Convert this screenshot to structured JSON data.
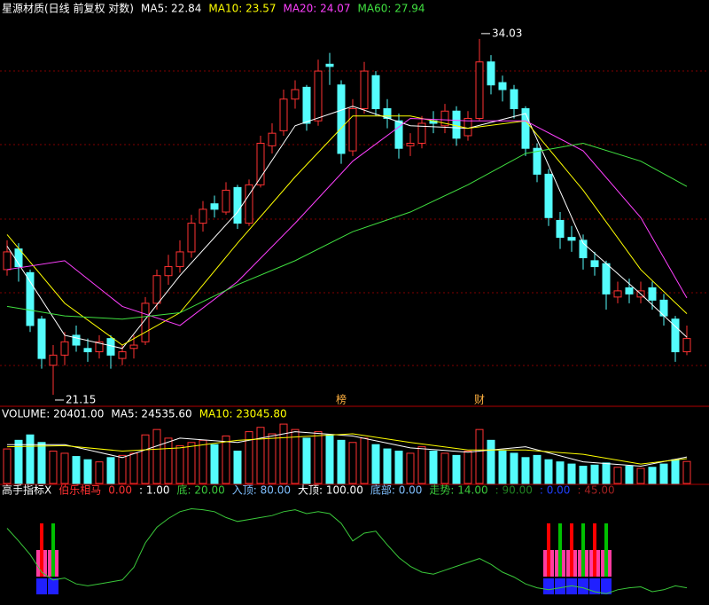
{
  "chart_data": [
    {
      "type": "candlestick",
      "log_scale": true,
      "ylim": [
        20.9,
        34.8
      ],
      "legend": [
        {
          "text": "星源材质(日线 前复权 对数)",
          "color": "#ffffff"
        },
        {
          "text": "MA5: 22.84",
          "color": "#ffffff"
        },
        {
          "text": "MA10: 23.57",
          "color": "#ffff00"
        },
        {
          "text": "MA20: 24.07",
          "color": "#ff40ff"
        },
        {
          "text": "MA60: 27.94",
          "color": "#40e040"
        }
      ],
      "up_color": "#ff3232",
      "down_color": "#54fcfc",
      "open": [
        25.0,
        25.7,
        24.9,
        23.4,
        22.0,
        22.3,
        22.9,
        22.5,
        22.4,
        22.8,
        22.2,
        22.5,
        22.7,
        23.9,
        24.8,
        25.1,
        25.6,
        26.6,
        27.3,
        27.0,
        27.9,
        26.6,
        28.0,
        29.5,
        30.1,
        31.4,
        31.9,
        30.5,
        32.9,
        32.0,
        29.3,
        31.0,
        32.4,
        31.0,
        30.5,
        29.5,
        29.6,
        30.5,
        30.3,
        30.9,
        29.9,
        30.6,
        33.0,
        32.1,
        31.8,
        31.0,
        29.4,
        28.4,
        26.7,
        26.1,
        26.0,
        25.3,
        25.2,
        24.1,
        24.4,
        24.1,
        24.4,
        24.0,
        23.4,
        22.4
      ],
      "high": [
        26.0,
        25.9,
        25.0,
        23.5,
        22.6,
        23.0,
        23.2,
        22.8,
        22.9,
        22.9,
        22.6,
        22.9,
        24.1,
        25.0,
        25.5,
        26.0,
        26.9,
        27.4,
        27.6,
        28.1,
        28.0,
        28.2,
        29.9,
        30.4,
        31.8,
        32.2,
        32.0,
        33.1,
        33.4,
        32.2,
        31.4,
        33.0,
        32.6,
        31.4,
        30.8,
        30.0,
        30.7,
        30.9,
        31.2,
        31.1,
        30.9,
        34.03,
        33.3,
        32.4,
        32.0,
        31.1,
        29.6,
        28.6,
        27.0,
        26.5,
        26.2,
        25.6,
        25.3,
        24.6,
        24.7,
        24.6,
        24.6,
        24.2,
        23.5,
        23.2
      ],
      "low": [
        24.8,
        24.6,
        23.0,
        21.9,
        21.15,
        22.0,
        22.4,
        22.1,
        22.2,
        21.9,
        22.0,
        22.2,
        22.6,
        23.7,
        24.5,
        24.9,
        25.4,
        26.3,
        26.8,
        26.9,
        26.4,
        26.5,
        27.9,
        29.2,
        29.9,
        31.0,
        30.1,
        30.3,
        32.0,
        28.8,
        29.1,
        30.8,
        30.7,
        30.2,
        29.0,
        29.1,
        29.4,
        30.0,
        30.0,
        29.5,
        29.7,
        30.5,
        31.6,
        31.3,
        30.6,
        29.1,
        28.1,
        26.5,
        25.7,
        25.6,
        25.0,
        24.8,
        23.7,
        23.9,
        23.9,
        23.9,
        23.7,
        23.2,
        22.1,
        22.3
      ],
      "close": [
        25.6,
        25.1,
        23.2,
        22.2,
        22.3,
        22.7,
        22.6,
        22.4,
        22.7,
        22.3,
        22.4,
        22.6,
        23.9,
        24.8,
        25.1,
        25.6,
        26.6,
        27.1,
        27.1,
        27.8,
        26.6,
        28.0,
        29.6,
        30.0,
        31.4,
        31.8,
        30.4,
        32.6,
        32.8,
        29.2,
        31.0,
        32.6,
        31.0,
        30.6,
        29.4,
        29.6,
        30.4,
        30.4,
        30.9,
        29.8,
        30.6,
        33.0,
        32.0,
        31.8,
        31.0,
        29.4,
        28.4,
        26.8,
        26.1,
        26.0,
        25.4,
        25.1,
        24.2,
        24.3,
        24.2,
        24.3,
        24.0,
        23.5,
        22.4,
        22.8
      ],
      "ma": [
        {
          "color": "#ffffff",
          "x": [
            0,
            5,
            10,
            15,
            20,
            25,
            30,
            35,
            40,
            45,
            50,
            55,
            59
          ],
          "values": [
            25.8,
            22.9,
            22.5,
            24.8,
            27.0,
            30.3,
            31.1,
            30.3,
            30.2,
            30.8,
            25.9,
            24.2,
            22.84
          ]
        },
        {
          "color": "#ffff00",
          "x": [
            0,
            5,
            10,
            15,
            20,
            25,
            30,
            35,
            40,
            45,
            50,
            55,
            59
          ],
          "values": [
            26.2,
            23.9,
            22.6,
            23.6,
            25.9,
            28.3,
            30.7,
            30.7,
            30.2,
            30.5,
            27.8,
            25.0,
            23.57
          ]
        },
        {
          "color": "#ff40ff",
          "x": [
            0,
            5,
            10,
            15,
            20,
            25,
            30,
            35,
            40,
            45,
            50,
            55,
            59
          ],
          "values": [
            25.0,
            25.3,
            23.8,
            23.2,
            24.6,
            26.6,
            28.9,
            30.6,
            30.5,
            30.5,
            29.3,
            26.8,
            24.07
          ]
        },
        {
          "color": "#40e040",
          "x": [
            0,
            5,
            10,
            15,
            20,
            25,
            30,
            35,
            40,
            45,
            50,
            55,
            59
          ],
          "values": [
            23.8,
            23.5,
            23.4,
            23.6,
            24.5,
            25.3,
            26.3,
            27.0,
            28.0,
            29.2,
            29.6,
            28.9,
            27.94
          ]
        }
      ],
      "annotations": [
        {
          "index": 41,
          "value": 34.03
        },
        {
          "index": 4,
          "value": 21.15
        }
      ],
      "events": [
        {
          "index": 29,
          "text": "榜"
        },
        {
          "index": 41,
          "text": "财"
        }
      ]
    },
    {
      "type": "bar",
      "ylim": [
        0,
        60000
      ],
      "legend": [
        {
          "text": "VOLUME: 20401.00",
          "color": "#ffffff"
        },
        {
          "text": "MA5: 24535.60",
          "color": "#ffffff"
        },
        {
          "text": "MA10: 23045.80",
          "color": "#ffff00"
        }
      ],
      "values": [
        32000,
        40000,
        45000,
        38000,
        30000,
        28000,
        25000,
        22000,
        20000,
        24000,
        26000,
        28000,
        45000,
        50000,
        42000,
        35000,
        38000,
        40000,
        36000,
        44000,
        30000,
        48000,
        52000,
        46000,
        55000,
        50000,
        42000,
        48000,
        45000,
        40000,
        38000,
        42000,
        36000,
        32000,
        30000,
        28000,
        34000,
        30000,
        28000,
        26000,
        30000,
        50000,
        40000,
        30000,
        28000,
        24000,
        26000,
        22000,
        20000,
        18000,
        16000,
        17000,
        19000,
        15000,
        16000,
        14000,
        15000,
        18000,
        22000,
        20401
      ],
      "ma": [
        {
          "color": "#ffffff",
          "x": [
            0,
            5,
            10,
            15,
            20,
            25,
            30,
            35,
            40,
            45,
            50,
            55,
            59
          ],
          "values": [
            36000,
            36000,
            24000,
            42000,
            38000,
            48000,
            44000,
            33000,
            29000,
            34000,
            20000,
            16000,
            24535.6
          ]
        },
        {
          "color": "#ffff00",
          "x": [
            0,
            5,
            10,
            15,
            20,
            25,
            30,
            35,
            40,
            45,
            50,
            55,
            59
          ],
          "values": [
            34000,
            35000,
            30000,
            33000,
            40000,
            43000,
            46000,
            38000,
            31000,
            31000,
            27000,
            18000,
            23045.8
          ]
        }
      ]
    },
    {
      "type": "line",
      "ylim": [
        0,
        100
      ],
      "color": "#3ac83a",
      "legend": [
        {
          "text": "高手指标X",
          "color": "#ffffff"
        },
        {
          "text": "伯乐相马",
          "color": "#ff3232"
        },
        {
          "text": "0.00",
          "color": "#ff3232"
        },
        {
          "text": ": 1.00",
          "color": "#ffffff"
        },
        {
          "text": "底: 20.00",
          "color": "#3ac83a"
        },
        {
          "text": "入顶: 80.00",
          "color": "#80c0ff"
        },
        {
          "text": "大顶: 100.00",
          "color": "#ffffff"
        },
        {
          "text": "底部: 0.00",
          "color": "#80c0ff"
        },
        {
          "text": "走势: 14.00",
          "color": "#3ac83a"
        },
        {
          "text": ": 90.00",
          "color": "#208020"
        },
        {
          "text": ": 0.00",
          "color": "#2040ff"
        },
        {
          "text": ": 45.00",
          "color": "#a02020"
        }
      ],
      "values": [
        75,
        62,
        48,
        30,
        22,
        24,
        18,
        16,
        18,
        20,
        22,
        35,
        60,
        76,
        85,
        92,
        95,
        94,
        92,
        86,
        82,
        84,
        86,
        88,
        92,
        94,
        90,
        92,
        90,
        80,
        62,
        70,
        72,
        58,
        45,
        36,
        30,
        28,
        32,
        36,
        40,
        44,
        38,
        30,
        25,
        18,
        14,
        12,
        14,
        16,
        14,
        10,
        8,
        12,
        14,
        15,
        10,
        12,
        16,
        14
      ],
      "signals": [
        3,
        4,
        47,
        48,
        49,
        50,
        51,
        52
      ]
    }
  ]
}
